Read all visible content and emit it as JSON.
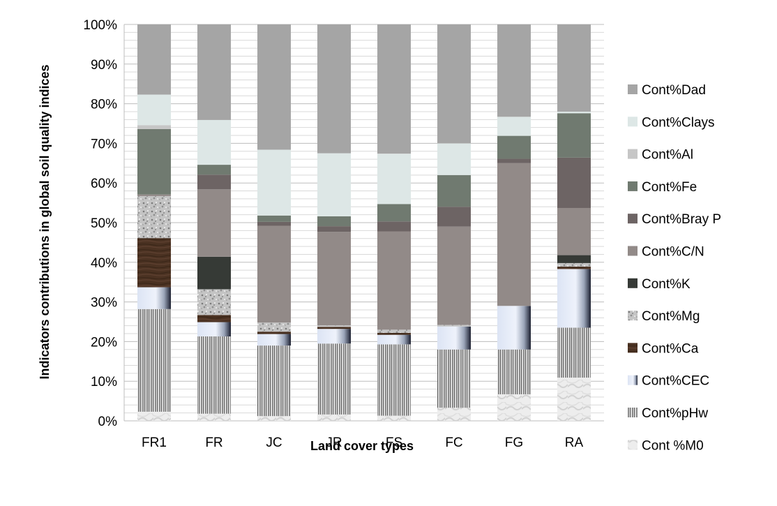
{
  "chart_data": {
    "type": "bar",
    "stacked": true,
    "percent": true,
    "xlabel": "Land cover types",
    "ylabel": "Indicators  contributions in global soil quality indices",
    "ylim": [
      0,
      100
    ],
    "y_ticks": [
      "0%",
      "10%",
      "20%",
      "30%",
      "40%",
      "50%",
      "60%",
      "70%",
      "80%",
      "90%",
      "100%"
    ],
    "grid": true,
    "legend_position": "right",
    "categories": [
      "FR1",
      "FR",
      "JC",
      "JR",
      "FS",
      "FC",
      "FG",
      "RA"
    ],
    "series": [
      {
        "name": "Cont %M0",
        "color": "#e8e8e8",
        "pattern": "marble",
        "values": [
          2.3,
          1.8,
          1.2,
          1.6,
          1.3,
          3.3,
          6.7,
          10.9
        ]
      },
      {
        "name": "Cont%pHw",
        "color": "#b0b0b0",
        "pattern": "vstripes",
        "values": [
          25.9,
          19.5,
          17.8,
          17.9,
          18.0,
          14.7,
          11.3,
          12.6
        ]
      },
      {
        "name": "Cont%CEC",
        "color": "#dfe6f5",
        "pattern": "gradient",
        "values": [
          5.5,
          3.6,
          2.9,
          3.7,
          2.4,
          5.8,
          11.0,
          14.8
        ]
      },
      {
        "name": "Cont%Ca",
        "color": "#4a3322",
        "pattern": "wood",
        "values": [
          12.4,
          1.8,
          0.6,
          0.5,
          0.5,
          0.0,
          0.0,
          0.6
        ]
      },
      {
        "name": "Cont%Mg",
        "color": "#b8b8b8",
        "pattern": "speckle",
        "values": [
          10.6,
          6.5,
          2.3,
          0.4,
          0.8,
          0.4,
          0.0,
          0.9
        ]
      },
      {
        "name": "Cont%K",
        "color": "#363a36",
        "pattern": "solid",
        "values": [
          0.0,
          8.2,
          0.0,
          0.0,
          0.0,
          0.0,
          0.0,
          2.0
        ]
      },
      {
        "name": "Cont%C/N",
        "color": "#928a88",
        "pattern": "solid",
        "values": [
          0.4,
          17.0,
          24.4,
          23.6,
          24.8,
          24.8,
          36.0,
          11.9
        ]
      },
      {
        "name": "Cont%Bray P",
        "color": "#6d6464",
        "pattern": "solid",
        "values": [
          0.0,
          3.7,
          1.0,
          1.4,
          2.5,
          5.0,
          1.1,
          12.7
        ]
      },
      {
        "name": "Cont%Fe",
        "color": "#707a70",
        "pattern": "solid",
        "values": [
          16.5,
          2.5,
          1.6,
          2.5,
          4.4,
          8.0,
          5.8,
          11.2
        ]
      },
      {
        "name": "Cont%Al",
        "color": "#c6c6c6",
        "pattern": "solid",
        "values": [
          1.0,
          0.0,
          0.0,
          0.0,
          0.0,
          0.0,
          0.0,
          0.0
        ]
      },
      {
        "name": "Cont%Clays",
        "color": "#dde7e6",
        "pattern": "solid",
        "values": [
          7.7,
          11.3,
          16.6,
          15.9,
          12.7,
          8.0,
          4.8,
          0.4
        ]
      },
      {
        "name": "Cont%Dad",
        "color": "#a5a5a5",
        "pattern": "solid",
        "values": [
          17.7,
          24.1,
          31.6,
          32.5,
          32.6,
          30.0,
          23.3,
          22.0
        ]
      }
    ]
  }
}
